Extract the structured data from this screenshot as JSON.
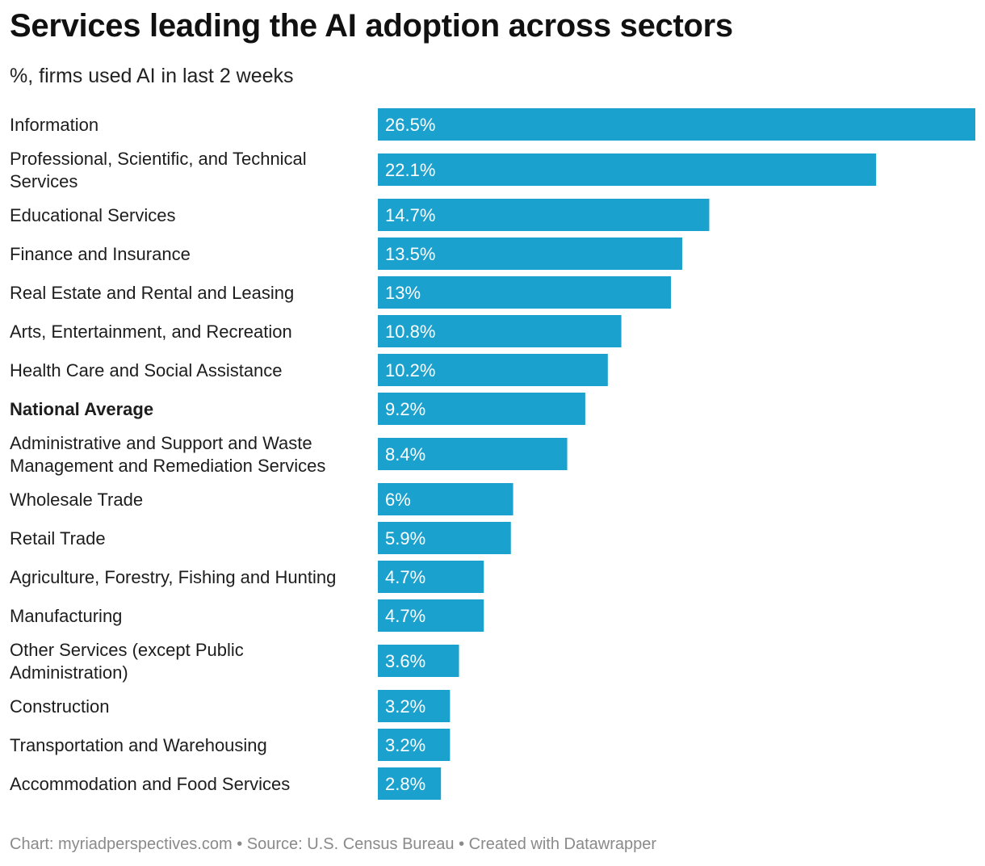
{
  "chart_data": {
    "type": "bar",
    "orientation": "horizontal",
    "title": "Services leading the AI adoption across sectors",
    "subtitle": "%, firms used AI in last 2 weeks",
    "categories": [
      "Information",
      "Professional, Scientific, and Technical Services",
      "Educational Services",
      "Finance and Insurance",
      "Real Estate and Rental and Leasing",
      "Arts, Entertainment, and Recreation",
      "Health Care and Social Assistance",
      "National Average",
      "Administrative and Support and Waste Management and Remediation Services",
      "Wholesale Trade",
      "Retail Trade",
      "Agriculture, Forestry, Fishing and Hunting",
      "Manufacturing",
      "Other Services (except Public Administration)",
      "Construction",
      "Transportation and Warehousing",
      "Accommodation and Food Services"
    ],
    "values": [
      26.5,
      22.1,
      14.7,
      13.5,
      13,
      10.8,
      10.2,
      9.2,
      8.4,
      6,
      5.9,
      4.7,
      4.7,
      3.6,
      3.2,
      3.2,
      2.8
    ],
    "value_labels": [
      "26.5%",
      "22.1%",
      "14.7%",
      "13.5%",
      "13%",
      "10.8%",
      "10.2%",
      "9.2%",
      "8.4%",
      "6%",
      "5.9%",
      "4.7%",
      "4.7%",
      "3.6%",
      "3.2%",
      "3.2%",
      "2.8%"
    ],
    "highlighted_category": "National Average",
    "bar_color": "#1ba1ce",
    "label_color": "#ffffff",
    "xlim": [
      0,
      26.5
    ],
    "grid": false,
    "legend": "none"
  },
  "footer": "Chart: myriadperspectives.com • Source: U.S. Census Bureau • Created with Datawrapper"
}
